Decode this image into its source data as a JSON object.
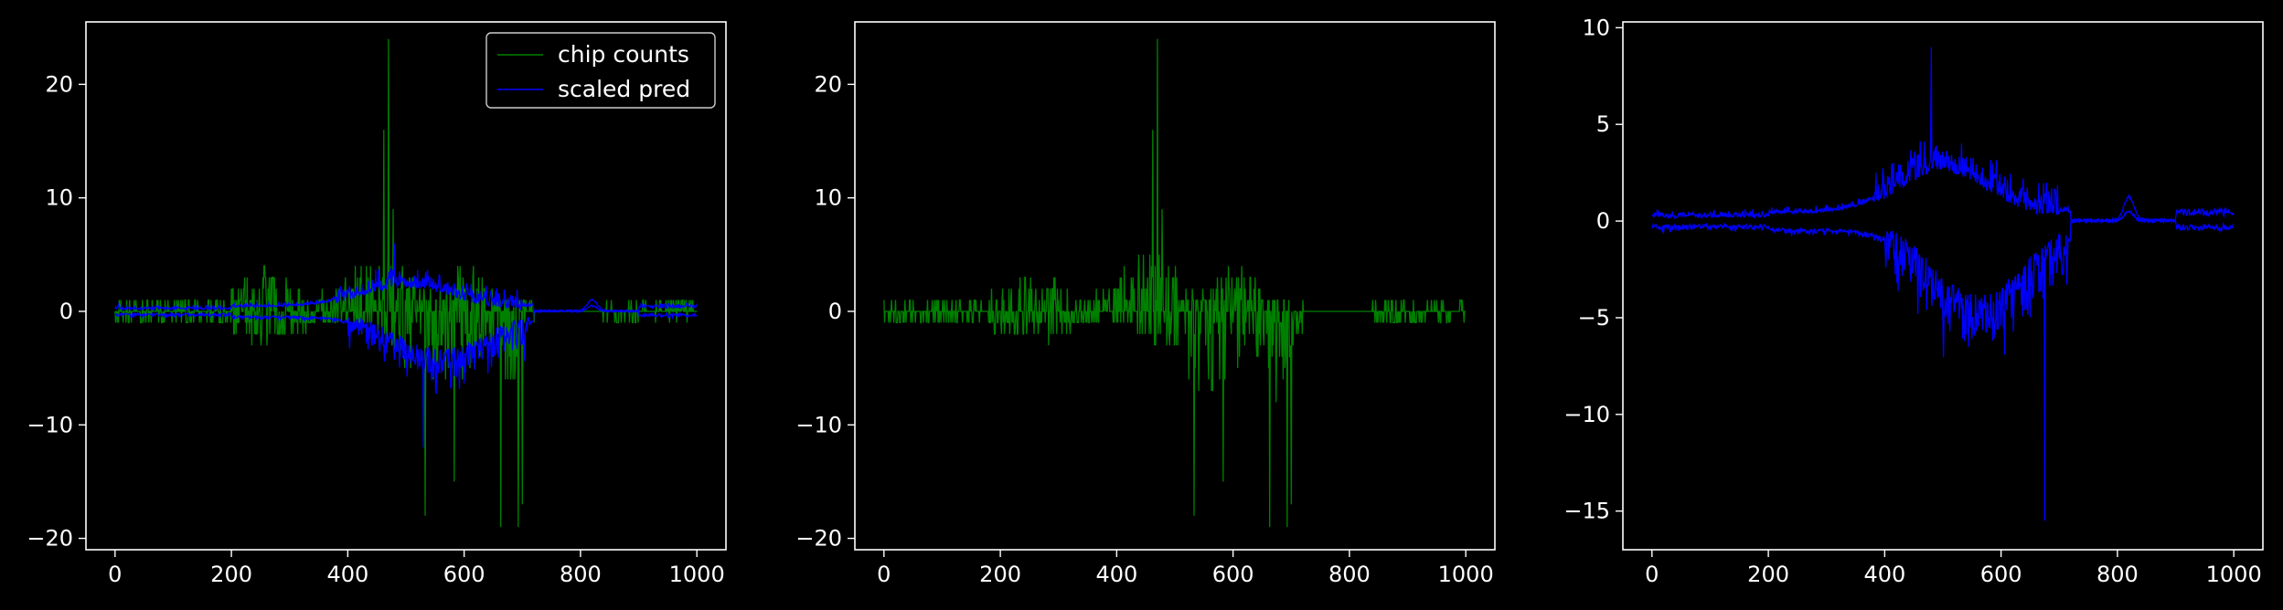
{
  "chart_data": [
    {
      "type": "line",
      "panel": "left",
      "xlim": [
        -50,
        1050
      ],
      "ylim": [
        -21,
        25.5
      ],
      "xticks": [
        0,
        200,
        400,
        600,
        800,
        1000
      ],
      "yticks": [
        -20,
        -10,
        0,
        10,
        20
      ],
      "xtick_labels": [
        "0",
        "200",
        "400",
        "600",
        "800",
        "1000"
      ],
      "ytick_labels": [
        "−20",
        "−10",
        "0",
        "10",
        "20"
      ],
      "legend": {
        "position": "top-right",
        "entries": [
          "chip counts",
          "scaled pred"
        ]
      },
      "series": [
        {
          "name": "chip counts",
          "color": "#008000",
          "role": "counts",
          "x_range": [
            0,
            1000
          ],
          "peaks": [
            [
              470,
              24
            ],
            [
              462,
              16
            ],
            [
              478,
              9
            ],
            [
              533,
              -18
            ],
            [
              583,
              -15
            ],
            [
              663,
              -19
            ],
            [
              693,
              -19
            ],
            [
              700,
              -17
            ]
          ]
        },
        {
          "name": "scaled pred",
          "color": "#0000ff",
          "role": "pred_split",
          "x_range": [
            0,
            1000
          ],
          "upper_peak": [
            480,
            6
          ],
          "lower_trough": [
            530,
            -12
          ]
        }
      ]
    },
    {
      "type": "line",
      "panel": "middle",
      "xlim": [
        -50,
        1050
      ],
      "ylim": [
        -21,
        25.5
      ],
      "xticks": [
        0,
        200,
        400,
        600,
        800,
        1000
      ],
      "yticks": [
        -20,
        -10,
        0,
        10,
        20
      ],
      "xtick_labels": [
        "0",
        "200",
        "400",
        "600",
        "800",
        "1000"
      ],
      "ytick_labels": [
        "−20",
        "−10",
        "0",
        "10",
        "20"
      ],
      "series": [
        {
          "color": "#008000",
          "role": "counts",
          "x_range": [
            0,
            1000
          ],
          "peaks": [
            [
              470,
              24
            ],
            [
              462,
              16
            ],
            [
              478,
              9
            ],
            [
              533,
              -18
            ],
            [
              583,
              -15
            ],
            [
              663,
              -19
            ],
            [
              693,
              -19
            ],
            [
              700,
              -17
            ]
          ]
        }
      ]
    },
    {
      "type": "line",
      "panel": "right",
      "xlim": [
        -50,
        1050
      ],
      "ylim": [
        -17,
        10.3
      ],
      "xticks": [
        0,
        200,
        400,
        600,
        800,
        1000
      ],
      "yticks": [
        -15,
        -10,
        -5,
        0,
        5,
        10
      ],
      "xtick_labels": [
        "0",
        "200",
        "400",
        "600",
        "800",
        "1000"
      ],
      "ytick_labels": [
        "−15",
        "−10",
        "−5",
        "0",
        "5",
        "10"
      ],
      "series": [
        {
          "color": "#0000ff",
          "role": "pred_split",
          "x_range": [
            0,
            1000
          ],
          "upper_peak": [
            480,
            9
          ],
          "lower_trough": [
            675,
            -15.5
          ]
        }
      ]
    }
  ]
}
